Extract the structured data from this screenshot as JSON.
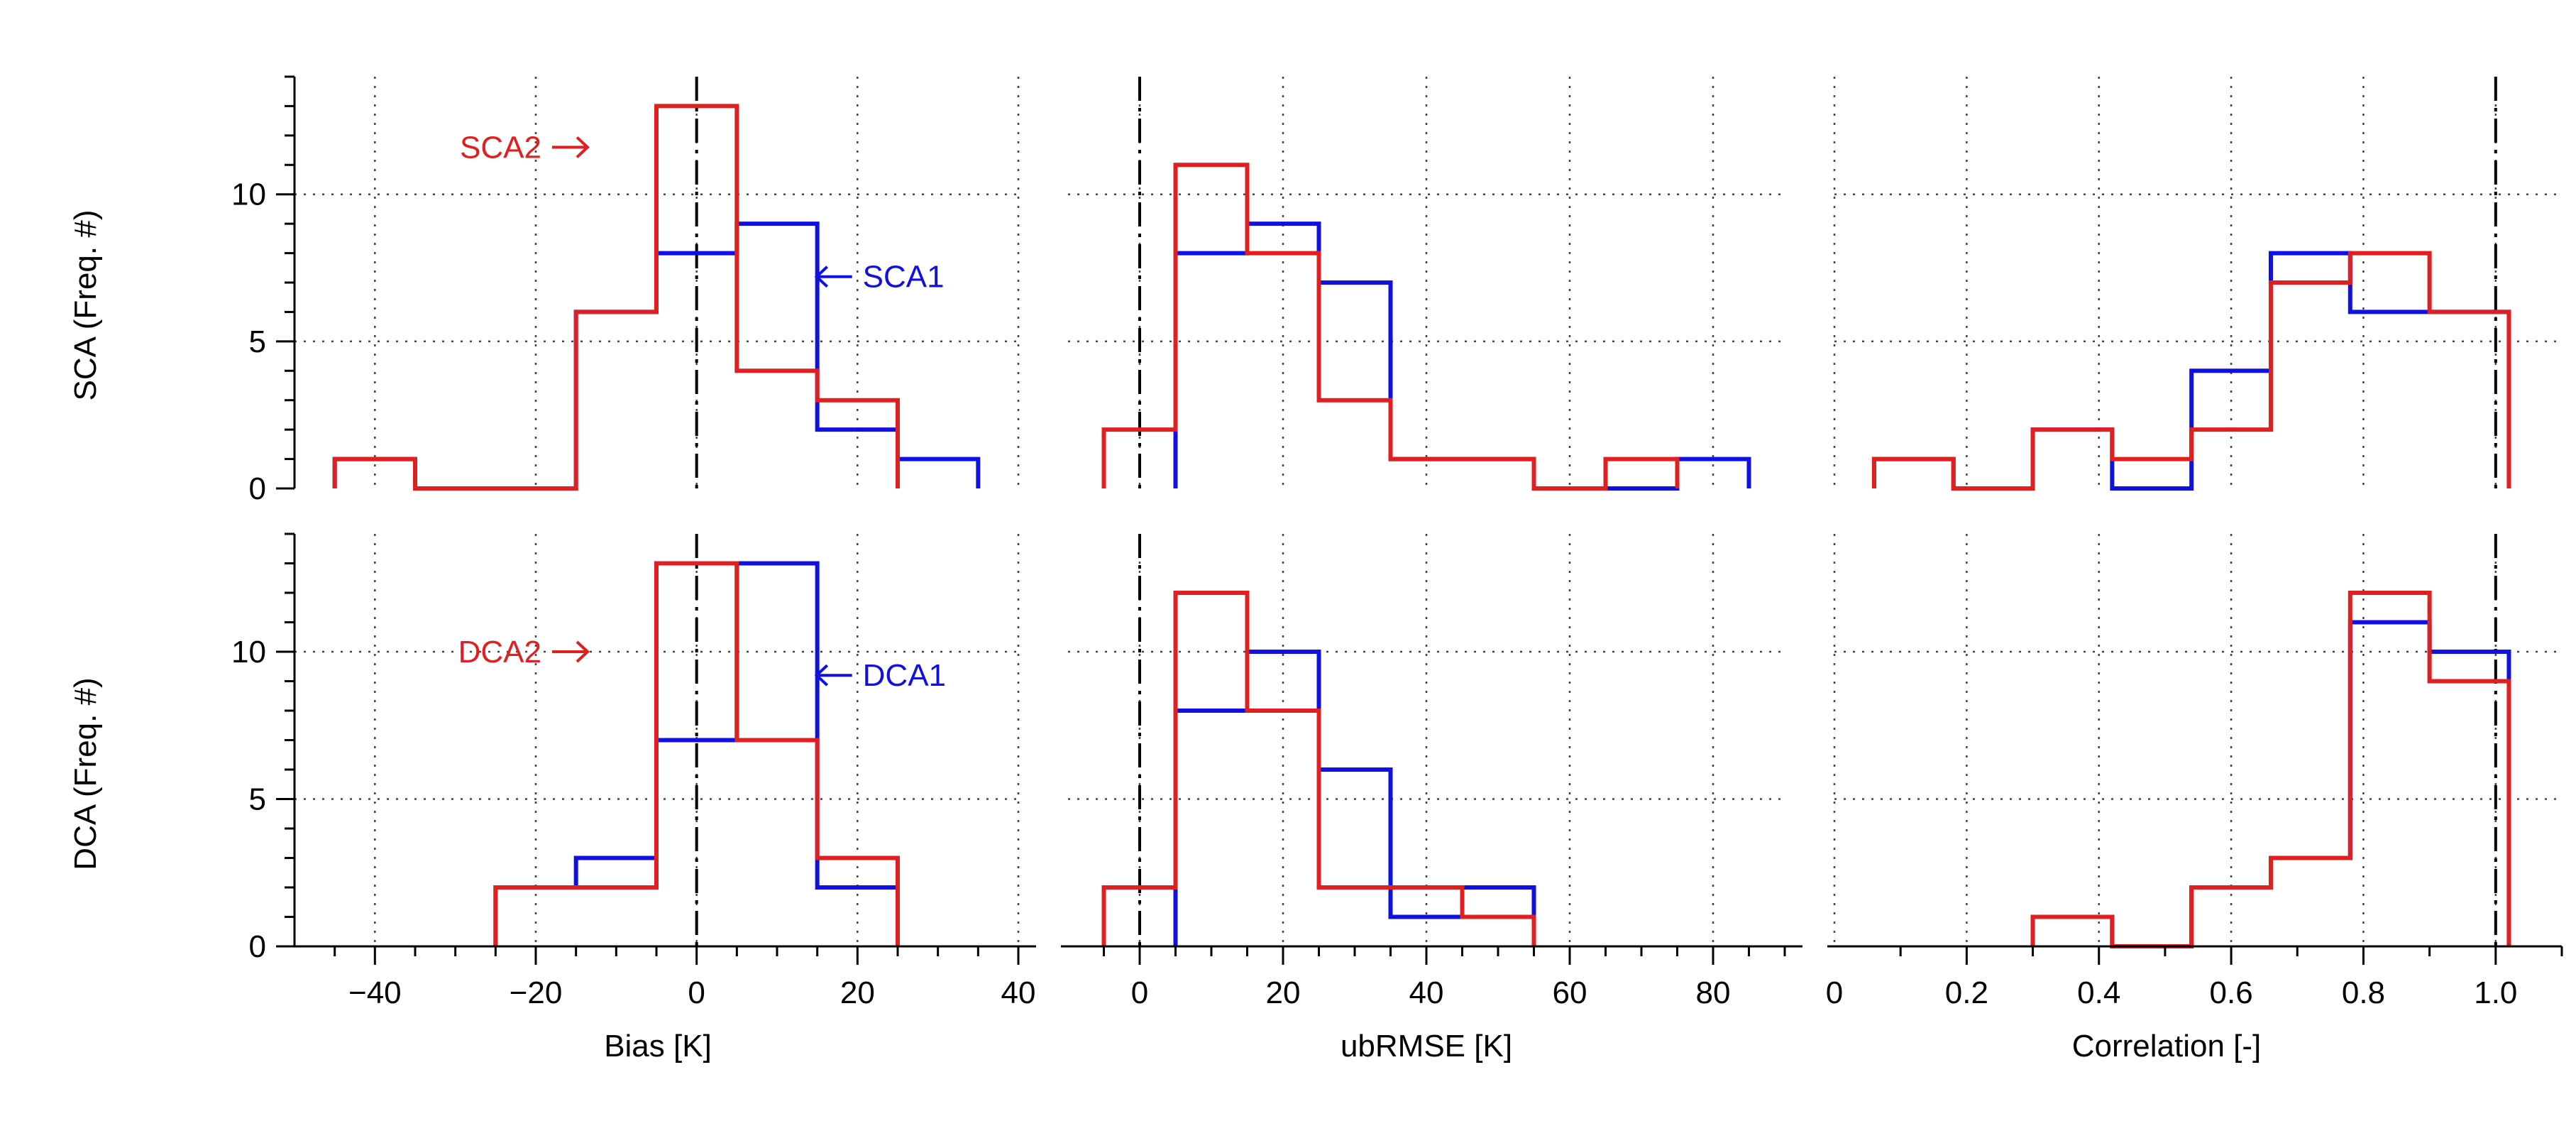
{
  "colors": {
    "sca1": "#1010e0",
    "sca2": "#e02020",
    "dca1": "#1010e0",
    "dca2": "#e02020",
    "axis": "#000000",
    "grid": "#444444"
  },
  "row_labels": [
    "SCA (Freq. #)",
    "DCA (Freq. #)"
  ],
  "col_labels": [
    "Bias [K]",
    "ubRMSE [K]",
    "Correlation [-]"
  ],
  "chart_data": [
    {
      "type": "bar",
      "histogram": true,
      "row": 0,
      "col": 0,
      "title": "",
      "xlabel": "Bias [K]",
      "ylabel": "SCA (Freq. #)",
      "xlim": [
        -50,
        40
      ],
      "ylim": [
        0,
        14
      ],
      "xticks": [
        -40,
        -20,
        0,
        20,
        40
      ],
      "xtick_labels": [
        "−40",
        "−20",
        "0",
        "20",
        "40"
      ],
      "yticks": [
        0,
        5,
        10
      ],
      "ytick_labels": [
        "0",
        "5",
        "10"
      ],
      "reference_line": 0,
      "grid": true,
      "series": [
        {
          "name": "SCA1",
          "color": "#1010e0",
          "edges": [
            -45,
            -35,
            -25,
            -15,
            -5,
            5,
            15,
            25,
            35
          ],
          "values": [
            1,
            0,
            0,
            6,
            8,
            9,
            2,
            1
          ]
        },
        {
          "name": "SCA2",
          "color": "#e02020",
          "edges": [
            -45,
            -35,
            -25,
            -15,
            -5,
            5,
            15,
            25
          ],
          "values": [
            1,
            0,
            0,
            6,
            13,
            4,
            3
          ]
        }
      ],
      "annotations": [
        {
          "text": "SCA2",
          "series": "SCA2",
          "arrow": "right",
          "ax": -14,
          "ay": 11.6
        },
        {
          "text": "SCA1",
          "series": "SCA1",
          "arrow": "left",
          "ax": 18,
          "ay": 7.2
        }
      ]
    },
    {
      "type": "bar",
      "histogram": true,
      "row": 0,
      "col": 1,
      "title": "",
      "xlabel": "ubRMSE [K]",
      "ylabel": "",
      "xlim": [
        -10,
        90
      ],
      "ylim": [
        0,
        14
      ],
      "xticks": [
        0,
        20,
        40,
        60,
        80
      ],
      "xtick_labels": [
        "0",
        "20",
        "40",
        "60",
        "80"
      ],
      "yticks": [
        0,
        5,
        10
      ],
      "ytick_labels": [
        "",
        "",
        ""
      ],
      "reference_line": 0,
      "grid": true,
      "series": [
        {
          "name": "SCA1",
          "color": "#1010e0",
          "edges": [
            5,
            15,
            25,
            35,
            45,
            55,
            65,
            75,
            85
          ],
          "values": [
            8,
            9,
            7,
            1,
            1,
            0,
            0,
            1
          ]
        },
        {
          "name": "SCA2",
          "color": "#e02020",
          "edges": [
            -5,
            5,
            15,
            25,
            35,
            45,
            55,
            65,
            75
          ],
          "values": [
            2,
            11,
            8,
            3,
            1,
            1,
            0,
            1
          ]
        }
      ],
      "annotations": []
    },
    {
      "type": "bar",
      "histogram": true,
      "row": 0,
      "col": 2,
      "title": "",
      "xlabel": "Correlation [-]",
      "ylabel": "",
      "xlim": [
        0,
        1.1
      ],
      "ylim": [
        0,
        14
      ],
      "xticks": [
        0,
        0.2,
        0.4,
        0.6,
        0.8,
        1.0
      ],
      "xtick_labels": [
        "0",
        "0.2",
        "0.4",
        "0.6",
        "0.8",
        "1.0"
      ],
      "yticks": [
        0,
        5,
        10
      ],
      "ytick_labels": [
        "",
        "",
        ""
      ],
      "reference_line": 1.0,
      "grid": true,
      "series": [
        {
          "name": "SCA1",
          "color": "#1010e0",
          "edges": [
            0.06,
            0.18,
            0.3,
            0.42,
            0.54,
            0.66,
            0.78,
            0.9,
            1.02
          ],
          "values": [
            1,
            0,
            2,
            0,
            4,
            8,
            6,
            6
          ]
        },
        {
          "name": "SCA2",
          "color": "#e02020",
          "edges": [
            0.06,
            0.18,
            0.3,
            0.42,
            0.54,
            0.66,
            0.78,
            0.9,
            1.02
          ],
          "values": [
            1,
            0,
            2,
            1,
            2,
            7,
            8,
            6
          ]
        }
      ],
      "annotations": []
    },
    {
      "type": "bar",
      "histogram": true,
      "row": 1,
      "col": 0,
      "title": "",
      "xlabel": "Bias [K]",
      "ylabel": "DCA (Freq. #)",
      "xlim": [
        -50,
        40
      ],
      "ylim": [
        0,
        14
      ],
      "xticks": [
        -40,
        -20,
        0,
        20,
        40
      ],
      "xtick_labels": [
        "−40",
        "−20",
        "0",
        "20",
        "40"
      ],
      "yticks": [
        0,
        5,
        10
      ],
      "ytick_labels": [
        "0",
        "5",
        "10"
      ],
      "reference_line": 0,
      "grid": true,
      "series": [
        {
          "name": "DCA1",
          "color": "#1010e0",
          "edges": [
            -25,
            -15,
            -5,
            5,
            15,
            25
          ],
          "values": [
            2,
            3,
            7,
            13,
            2
          ]
        },
        {
          "name": "DCA2",
          "color": "#e02020",
          "edges": [
            -25,
            -15,
            -5,
            5,
            15,
            25
          ],
          "values": [
            2,
            2,
            13,
            7,
            3
          ]
        }
      ],
      "annotations": [
        {
          "text": "DCA2",
          "series": "DCA2",
          "arrow": "right",
          "ax": -14,
          "ay": 10.0
        },
        {
          "text": "DCA1",
          "series": "DCA1",
          "arrow": "left",
          "ax": 18,
          "ay": 9.2
        }
      ]
    },
    {
      "type": "bar",
      "histogram": true,
      "row": 1,
      "col": 1,
      "title": "",
      "xlabel": "ubRMSE [K]",
      "ylabel": "",
      "xlim": [
        -10,
        90
      ],
      "ylim": [
        0,
        14
      ],
      "xticks": [
        0,
        20,
        40,
        60,
        80
      ],
      "xtick_labels": [
        "0",
        "20",
        "40",
        "60",
        "80"
      ],
      "yticks": [
        0,
        5,
        10
      ],
      "ytick_labels": [
        "",
        "",
        ""
      ],
      "reference_line": 0,
      "grid": true,
      "series": [
        {
          "name": "DCA1",
          "color": "#1010e0",
          "edges": [
            5,
            15,
            25,
            35,
            45,
            55
          ],
          "values": [
            8,
            10,
            6,
            1,
            2
          ]
        },
        {
          "name": "DCA2",
          "color": "#e02020",
          "edges": [
            -5,
            5,
            15,
            25,
            35,
            45,
            55
          ],
          "values": [
            2,
            12,
            8,
            2,
            2,
            1
          ]
        }
      ],
      "annotations": []
    },
    {
      "type": "bar",
      "histogram": true,
      "row": 1,
      "col": 2,
      "title": "",
      "xlabel": "Correlation [-]",
      "ylabel": "",
      "xlim": [
        0,
        1.1
      ],
      "ylim": [
        0,
        14
      ],
      "xticks": [
        0,
        0.2,
        0.4,
        0.6,
        0.8,
        1.0
      ],
      "xtick_labels": [
        "0",
        "0.2",
        "0.4",
        "0.6",
        "0.8",
        "1.0"
      ],
      "yticks": [
        0,
        5,
        10
      ],
      "ytick_labels": [
        "",
        "",
        ""
      ],
      "reference_line": 1.0,
      "grid": true,
      "series": [
        {
          "name": "DCA1",
          "color": "#1010e0",
          "edges": [
            0.3,
            0.42,
            0.54,
            0.66,
            0.78,
            0.9,
            1.02
          ],
          "values": [
            1,
            0,
            2,
            3,
            11,
            10
          ]
        },
        {
          "name": "DCA2",
          "color": "#e02020",
          "edges": [
            0.3,
            0.42,
            0.54,
            0.66,
            0.78,
            0.9,
            1.02
          ],
          "values": [
            1,
            0,
            2,
            3,
            12,
            9
          ]
        }
      ],
      "annotations": []
    }
  ]
}
